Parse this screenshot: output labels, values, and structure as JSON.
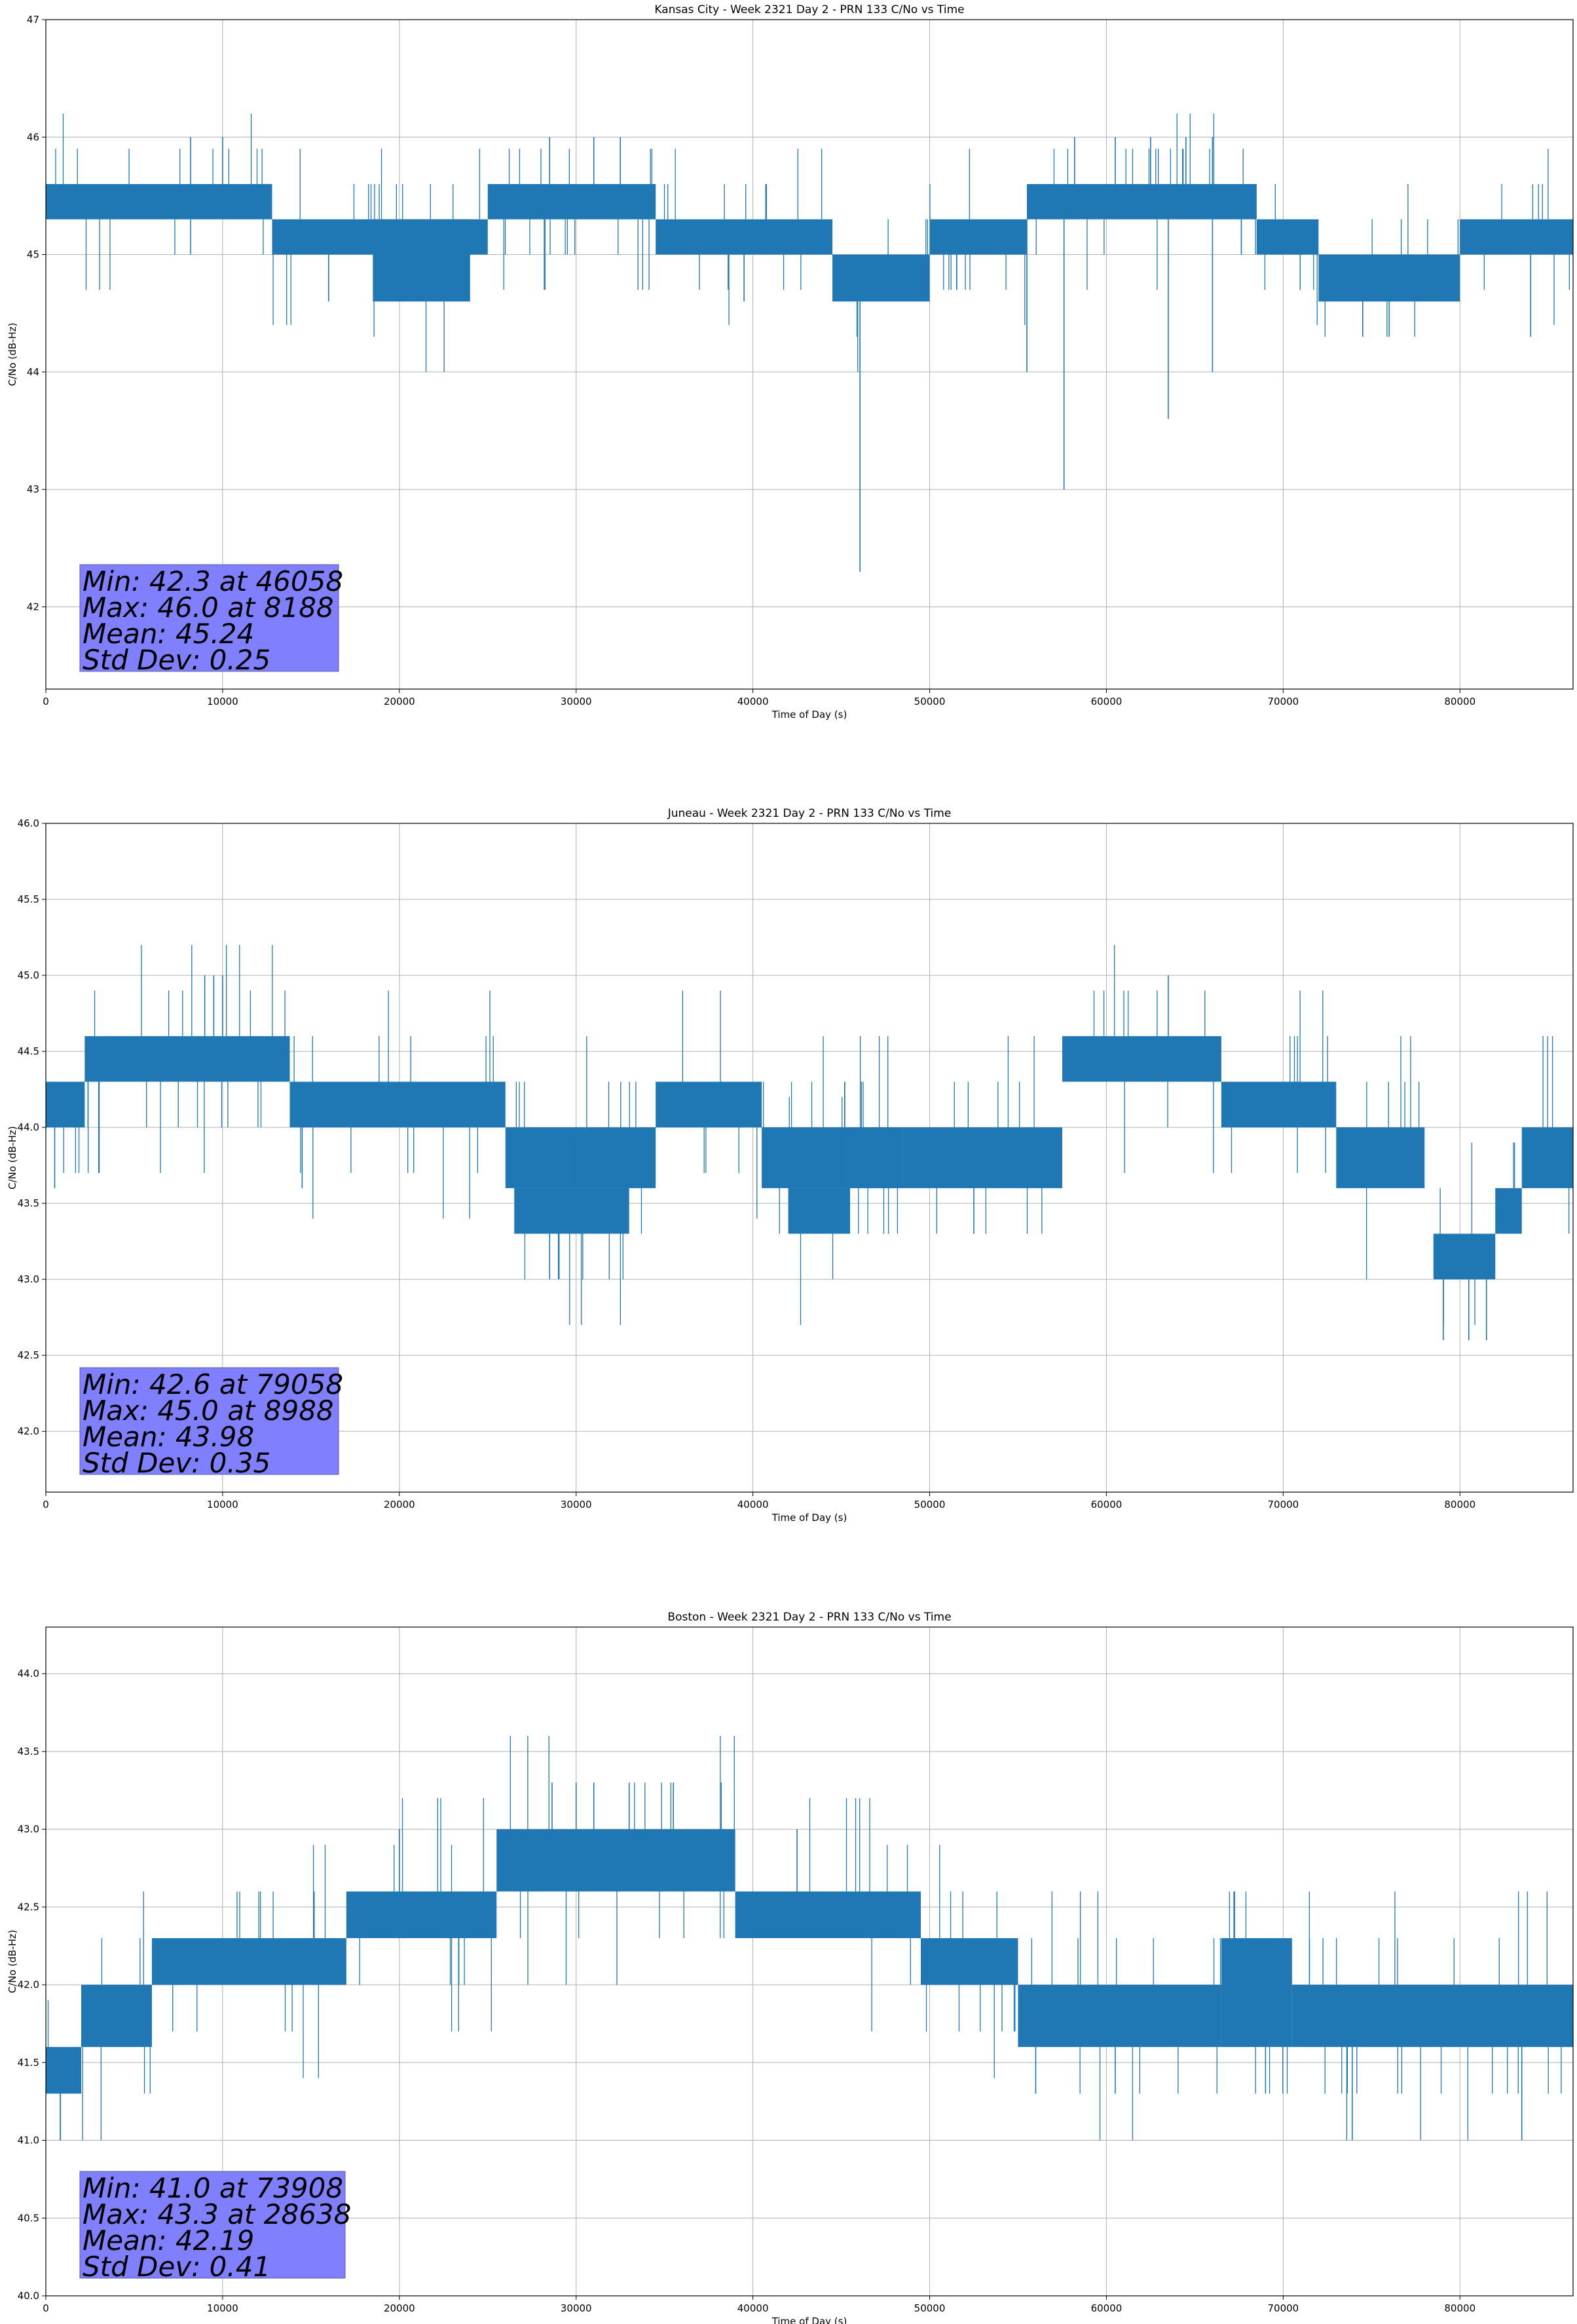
{
  "chart_data": [
    {
      "type": "line",
      "title": "Kansas City - Week 2321 Day 2 - PRN 133 C/No vs Time",
      "xlabel": "Time of Day (s)",
      "ylabel": "C/No (dB-Hz)",
      "xlim": [
        0,
        86400
      ],
      "ylim": [
        41.3,
        47.0
      ],
      "xticks": [
        0,
        10000,
        20000,
        30000,
        40000,
        50000,
        60000,
        70000,
        80000
      ],
      "yticks": [
        42,
        43,
        44,
        45,
        46,
        47
      ],
      "ytick_decimals": 0,
      "grid": true,
      "line_color": "#1f77b4",
      "stats": [
        "Min: 42.3 at 46058",
        "Max: 46.0 at 8188",
        "Mean: 45.24",
        "Std Dev: 0.25"
      ],
      "stats_box_color": "#8080ff",
      "series": [
        {
          "segments": [
            {
              "x": [
                0,
                12800
              ],
              "low": 45.3,
              "high": 45.6
            },
            {
              "x": [
                12800,
                25000
              ],
              "low": 45.0,
              "high": 45.3
            },
            {
              "x": [
                18500,
                24000
              ],
              "low": 44.6,
              "high": 45.3
            },
            {
              "x": [
                25000,
                34500
              ],
              "low": 45.3,
              "high": 45.6
            },
            {
              "x": [
                34500,
                44500
              ],
              "low": 45.0,
              "high": 45.3
            },
            {
              "x": [
                44500,
                50000
              ],
              "low": 44.6,
              "high": 45.0
            },
            {
              "x": [
                50000,
                55500
              ],
              "low": 45.0,
              "high": 45.3
            },
            {
              "x": [
                55500,
                68500
              ],
              "low": 45.3,
              "high": 45.6
            },
            {
              "x": [
                68500,
                72000
              ],
              "low": 45.0,
              "high": 45.3
            },
            {
              "x": [
                72000,
                80000
              ],
              "low": 44.6,
              "high": 45.0
            },
            {
              "x": [
                80000,
                86400
              ],
              "low": 45.0,
              "high": 45.3
            }
          ],
          "spikes": [
            {
              "x": 46058,
              "y": 42.3
            },
            {
              "x": 57600,
              "y": 43.0
            },
            {
              "x": 63500,
              "y": 43.6
            },
            {
              "x": 55500,
              "y": 44.0
            },
            {
              "x": 66000,
              "y": 44.0
            },
            {
              "x": 84000,
              "y": 44.3
            },
            {
              "x": 74500,
              "y": 44.3
            },
            {
              "x": 76000,
              "y": 44.3
            },
            {
              "x": 39500,
              "y": 44.6
            },
            {
              "x": 16000,
              "y": 44.6
            },
            {
              "x": 8188,
              "y": 46.0
            },
            {
              "x": 10000,
              "y": 46.0
            },
            {
              "x": 28500,
              "y": 46.0
            },
            {
              "x": 31000,
              "y": 46.0
            },
            {
              "x": 32500,
              "y": 46.0
            },
            {
              "x": 58200,
              "y": 46.0
            },
            {
              "x": 60500,
              "y": 46.0
            },
            {
              "x": 62500,
              "y": 46.0
            },
            {
              "x": 64500,
              "y": 46.0
            },
            {
              "x": 66000,
              "y": 46.0
            }
          ]
        }
      ]
    },
    {
      "type": "line",
      "title": "Juneau - Week 2321 Day 2 - PRN 133 C/No vs Time",
      "xlabel": "Time of Day (s)",
      "ylabel": "C/No (dB-Hz)",
      "xlim": [
        0,
        86400
      ],
      "ylim": [
        41.6,
        46.0
      ],
      "xticks": [
        0,
        10000,
        20000,
        30000,
        40000,
        50000,
        60000,
        70000,
        80000
      ],
      "yticks": [
        42.0,
        42.5,
        43.0,
        43.5,
        44.0,
        44.5,
        45.0,
        45.5,
        46.0
      ],
      "ytick_decimals": 1,
      "grid": true,
      "line_color": "#1f77b4",
      "stats": [
        "Min: 42.6 at 79058",
        "Max: 45.0 at 8988",
        "Mean: 43.98",
        "Std Dev: 0.35"
      ],
      "stats_box_color": "#8080ff",
      "series": [
        {
          "segments": [
            {
              "x": [
                0,
                2200
              ],
              "low": 44.0,
              "high": 44.3
            },
            {
              "x": [
                2200,
                13800
              ],
              "low": 44.3,
              "high": 44.6
            },
            {
              "x": [
                13800,
                26000
              ],
              "low": 44.0,
              "high": 44.3
            },
            {
              "x": [
                26000,
                34500
              ],
              "low": 43.6,
              "high": 44.0
            },
            {
              "x": [
                26500,
                33000
              ],
              "low": 43.3,
              "high": 43.6
            },
            {
              "x": [
                34500,
                40500
              ],
              "low": 44.0,
              "high": 44.3
            },
            {
              "x": [
                40500,
                48000
              ],
              "low": 43.6,
              "high": 44.0
            },
            {
              "x": [
                42000,
                45500
              ],
              "low": 43.3,
              "high": 43.6
            },
            {
              "x": [
                45500,
                48500
              ],
              "low": 43.6,
              "high": 44.0
            },
            {
              "x": [
                48500,
                57500
              ],
              "low": 43.6,
              "high": 44.0
            },
            {
              "x": [
                57500,
                66500
              ],
              "low": 44.3,
              "high": 44.6
            },
            {
              "x": [
                66500,
                73000
              ],
              "low": 44.0,
              "high": 44.3
            },
            {
              "x": [
                73000,
                78000
              ],
              "low": 43.6,
              "high": 44.0
            },
            {
              "x": [
                78500,
                82000
              ],
              "low": 43.0,
              "high": 43.3
            },
            {
              "x": [
                82000,
                83500
              ],
              "low": 43.3,
              "high": 43.6
            },
            {
              "x": [
                83500,
                86400
              ],
              "low": 43.6,
              "high": 44.0
            }
          ],
          "spikes": [
            {
              "x": 79058,
              "y": 42.6
            },
            {
              "x": 80500,
              "y": 42.6
            },
            {
              "x": 81500,
              "y": 42.6
            },
            {
              "x": 28500,
              "y": 43.0
            },
            {
              "x": 29000,
              "y": 43.0
            },
            {
              "x": 8988,
              "y": 45.0
            },
            {
              "x": 9500,
              "y": 45.0
            },
            {
              "x": 10000,
              "y": 45.0
            },
            {
              "x": 63500,
              "y": 45.0
            },
            {
              "x": 500,
              "y": 43.6
            },
            {
              "x": 14500,
              "y": 43.6
            },
            {
              "x": 52500,
              "y": 43.3
            }
          ]
        }
      ]
    },
    {
      "type": "line",
      "title": "Boston - Week 2321 Day 2 - PRN 133 C/No vs Time",
      "xlabel": "Time of Day (s)",
      "ylabel": "C/No (dB-Hz)",
      "xlim": [
        0,
        86400
      ],
      "ylim": [
        40.0,
        44.3
      ],
      "xticks": [
        0,
        10000,
        20000,
        30000,
        40000,
        50000,
        60000,
        70000,
        80000
      ],
      "yticks": [
        40.0,
        40.5,
        41.0,
        41.5,
        42.0,
        42.5,
        43.0,
        43.5,
        44.0
      ],
      "ytick_decimals": 1,
      "grid": true,
      "line_color": "#1f77b4",
      "stats": [
        "Min: 41.0 at 73908",
        "Max: 43.3 at 28638",
        "Mean: 42.19",
        "Std Dev: 0.41"
      ],
      "stats_box_color": "#8080ff",
      "series": [
        {
          "segments": [
            {
              "x": [
                0,
                2000
              ],
              "low": 41.3,
              "high": 41.6
            },
            {
              "x": [
                2000,
                6000
              ],
              "low": 41.6,
              "high": 42.0
            },
            {
              "x": [
                6000,
                17000
              ],
              "low": 42.0,
              "high": 42.3
            },
            {
              "x": [
                17000,
                25500
              ],
              "low": 42.3,
              "high": 42.6
            },
            {
              "x": [
                25500,
                39000
              ],
              "low": 42.6,
              "high": 43.0
            },
            {
              "x": [
                39000,
                49500
              ],
              "low": 42.3,
              "high": 42.6
            },
            {
              "x": [
                49500,
                55000
              ],
              "low": 42.0,
              "high": 42.3
            },
            {
              "x": [
                55000,
                66500
              ],
              "low": 41.6,
              "high": 42.0
            },
            {
              "x": [
                66500,
                70500
              ],
              "low": 41.6,
              "high": 42.3
            },
            {
              "x": [
                70500,
                86400
              ],
              "low": 41.6,
              "high": 42.0
            }
          ],
          "spikes": [
            {
              "x": 73908,
              "y": 41.0
            },
            {
              "x": 83500,
              "y": 41.0
            },
            {
              "x": 28638,
              "y": 43.3
            },
            {
              "x": 30000,
              "y": 43.3
            },
            {
              "x": 31000,
              "y": 43.3
            },
            {
              "x": 33000,
              "y": 43.3
            },
            {
              "x": 35500,
              "y": 43.3
            },
            {
              "x": 42500,
              "y": 43.0
            },
            {
              "x": 56000,
              "y": 41.3
            },
            {
              "x": 60500,
              "y": 41.3
            },
            {
              "x": 69000,
              "y": 41.3
            },
            {
              "x": 20000,
              "y": 43.0
            }
          ]
        }
      ]
    }
  ]
}
